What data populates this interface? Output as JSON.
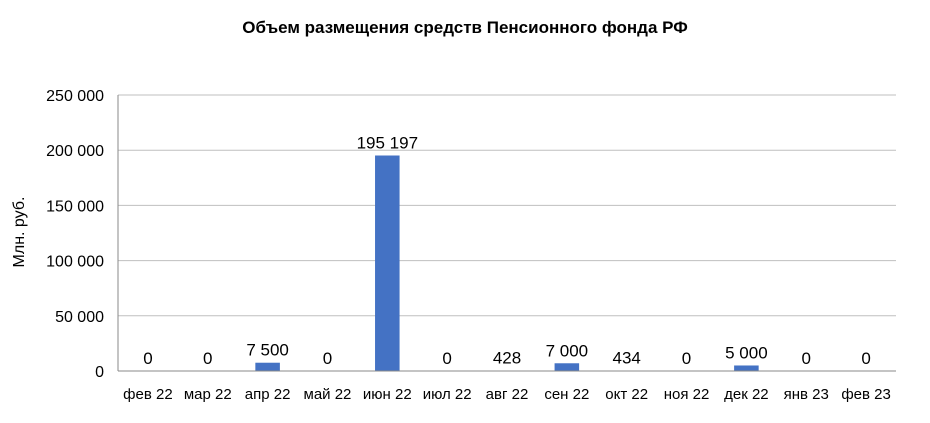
{
  "chart_data": {
    "type": "bar",
    "title": "Объем размещения средств Пенсионного фонда РФ",
    "ylabel": "Млн. руб.",
    "xlabel": "",
    "ylim": [
      0,
      250000
    ],
    "ytick_values": [
      0,
      50000,
      100000,
      150000,
      200000,
      250000
    ],
    "ytick_labels": [
      "0",
      "50 000",
      "100 000",
      "150 000",
      "200 000",
      "250 000"
    ],
    "grid": true,
    "bar_color": "#4472C4",
    "gridline_color": "#BFBFBF",
    "categories": [
      "фев 22",
      "мар 22",
      "апр 22",
      "май 22",
      "июн 22",
      "июл 22",
      "авг 22",
      "сен 22",
      "окт 22",
      "ноя 22",
      "дек 22",
      "янв 23",
      "фев 23"
    ],
    "values": [
      0,
      0,
      7500,
      0,
      195197,
      0,
      428,
      7000,
      434,
      0,
      5000,
      0,
      0
    ],
    "data_labels": [
      "0",
      "0",
      "7 500",
      "0",
      "195 197",
      "0",
      "428",
      "7 000",
      "434",
      "0",
      "5 000",
      "0",
      "0"
    ]
  }
}
